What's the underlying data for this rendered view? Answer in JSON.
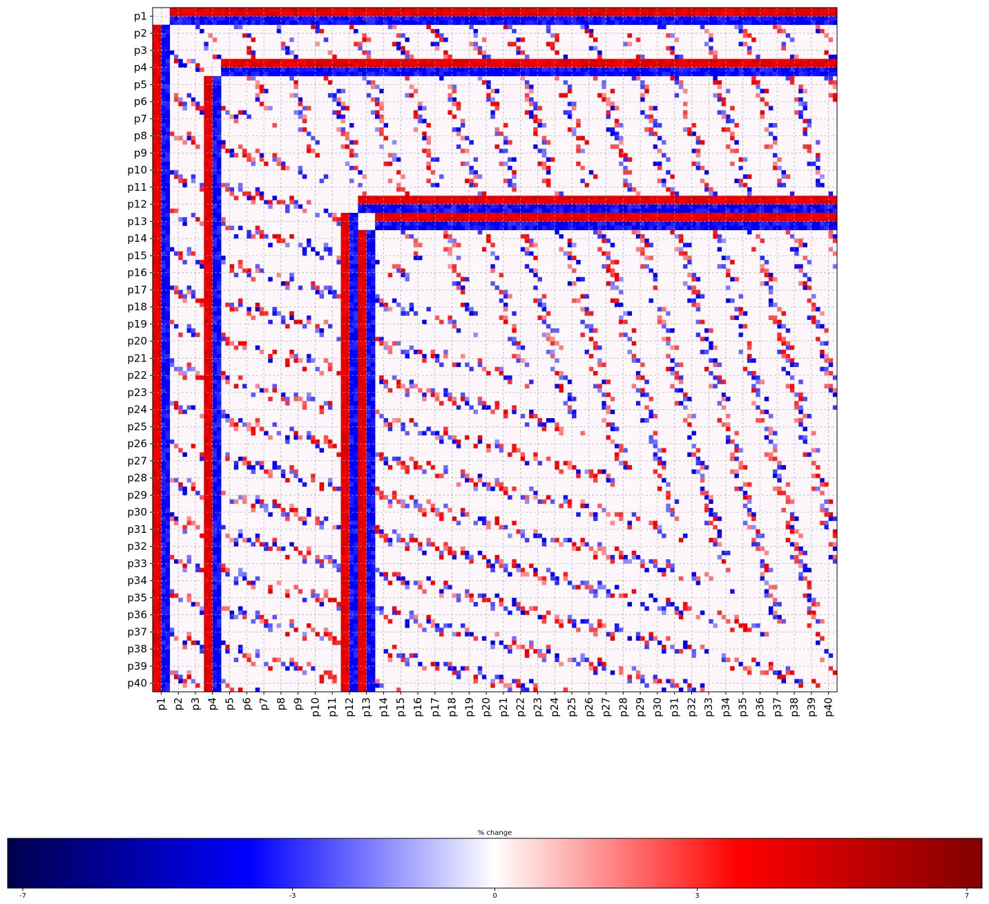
{
  "chart_data": {
    "type": "heatmap",
    "title": "",
    "xlabel": "",
    "ylabel": "",
    "rows": [
      "p1",
      "p2",
      "p3",
      "p4",
      "p5",
      "p6",
      "p7",
      "p8",
      "p9",
      "p10",
      "p11",
      "p12",
      "p13",
      "p14",
      "p15",
      "p16",
      "p17",
      "p18",
      "p19",
      "p20",
      "p21",
      "p22",
      "p23",
      "p24",
      "p25",
      "p26",
      "p27",
      "p28",
      "p29",
      "p30",
      "p31",
      "p32",
      "p33",
      "p34",
      "p35",
      "p36",
      "p37",
      "p38",
      "p39",
      "p40"
    ],
    "columns": [
      "p1",
      "p2",
      "p3",
      "p4",
      "p5",
      "p6",
      "p7",
      "p8",
      "p9",
      "p10",
      "p11",
      "p12",
      "p13",
      "p14",
      "p15",
      "p16",
      "p17",
      "p18",
      "p19",
      "p20",
      "p21",
      "p22",
      "p23",
      "p24",
      "p25",
      "p26",
      "p27",
      "p28",
      "p29",
      "p30",
      "p31",
      "p32",
      "p33",
      "p34",
      "p35",
      "p36",
      "p37",
      "p38",
      "p39",
      "p40"
    ],
    "grid": true,
    "grid_style": "dashed",
    "colormap": "seismic",
    "cmap_colors": [
      "#00004c",
      "#0000ff",
      "#ffffff",
      "#ff0000",
      "#800000"
    ],
    "prominent_bands": [
      "p1",
      "p4",
      "p12",
      "p13"
    ],
    "colorbar": {
      "label": "% change",
      "range": [
        -7,
        7
      ],
      "ticks": [
        "-7",
        "-3",
        "0",
        "3",
        "7"
      ],
      "placement": "bottom"
    }
  }
}
